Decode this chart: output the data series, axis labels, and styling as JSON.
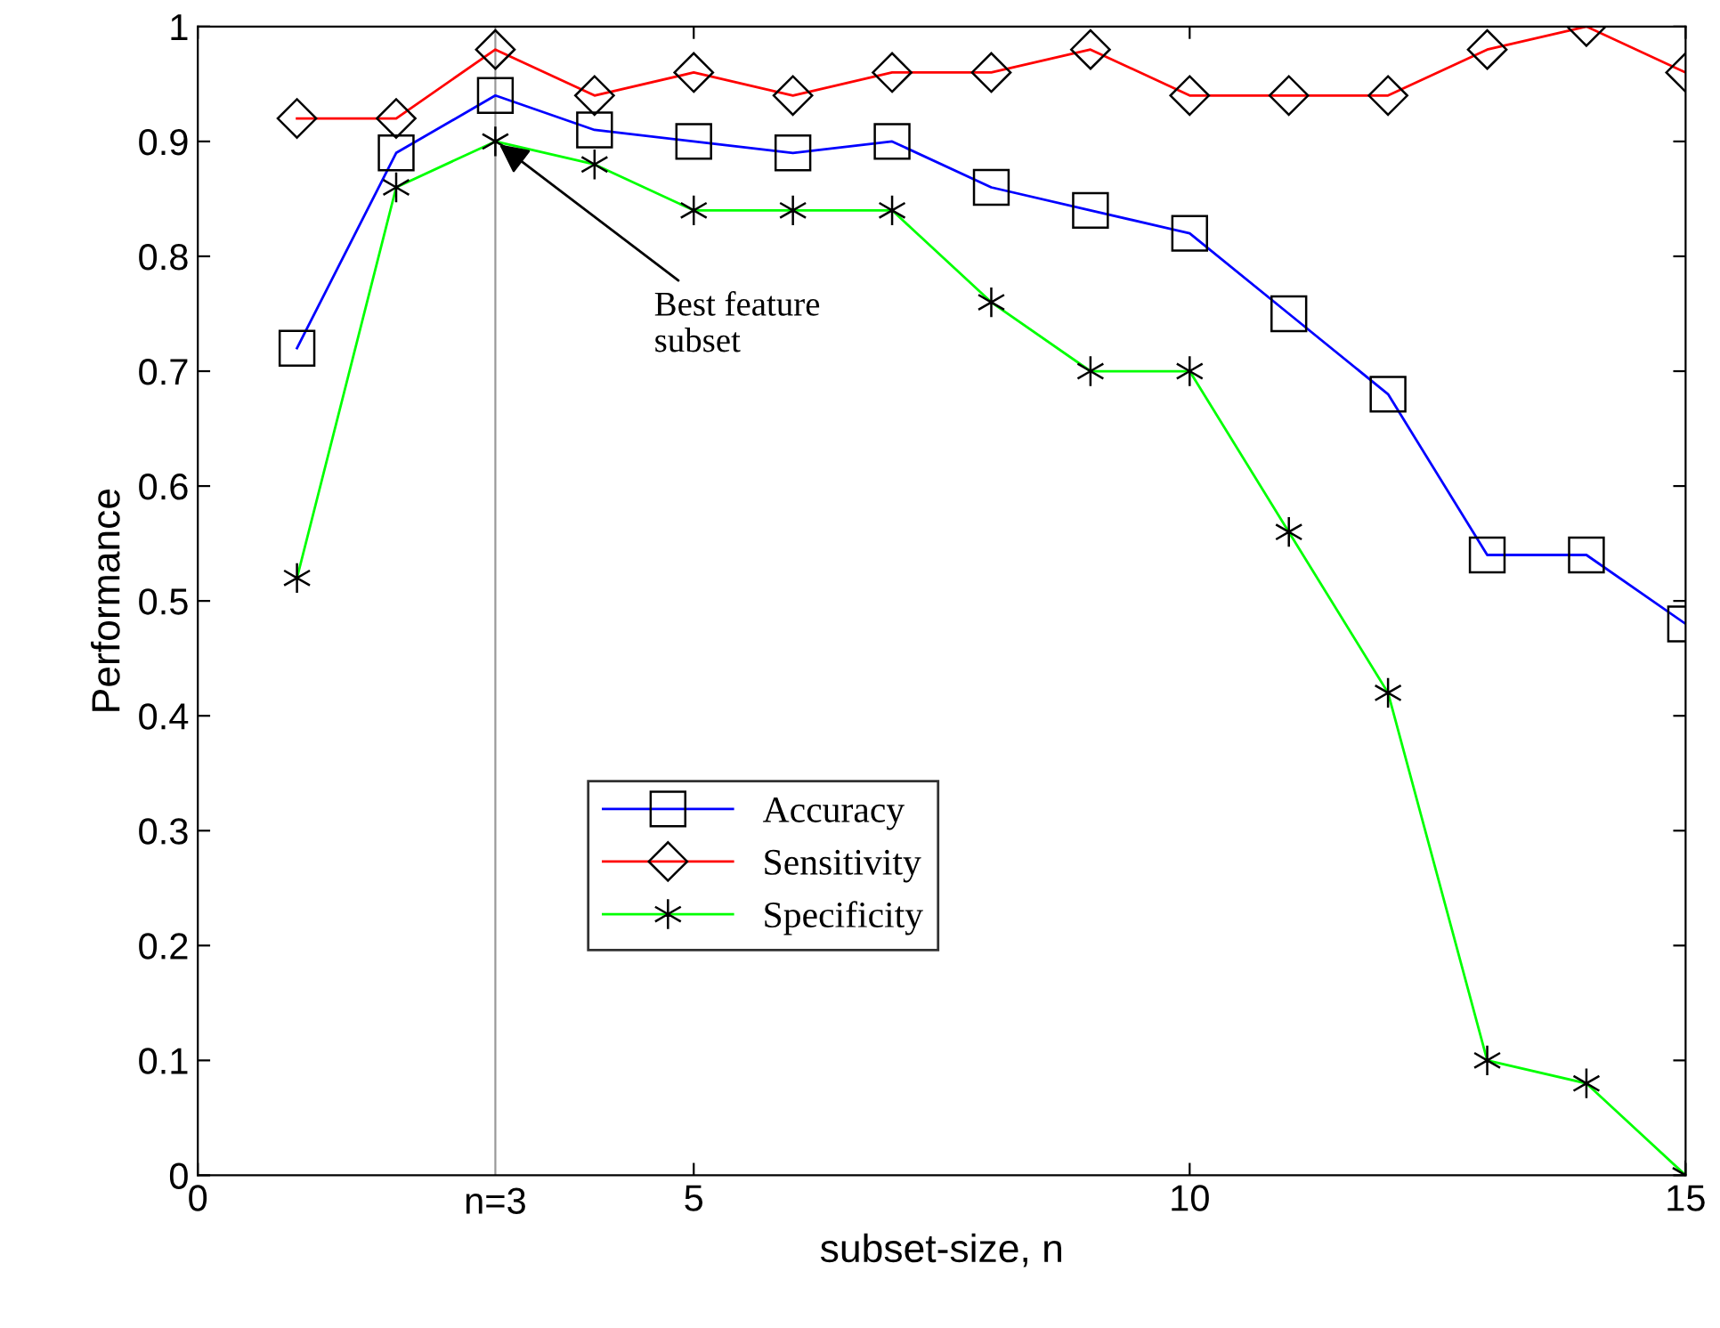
{
  "chart_data": {
    "type": "line",
    "xlabel": "subset-size, n",
    "ylabel": "Performance",
    "x": [
      1,
      2,
      3,
      4,
      5,
      6,
      7,
      8,
      9,
      10,
      11,
      12,
      13,
      14,
      15
    ],
    "series": [
      {
        "name": "Accuracy",
        "color": "#0000ff",
        "marker": "square",
        "values": [
          0.72,
          0.89,
          0.94,
          0.91,
          0.9,
          0.89,
          0.9,
          0.86,
          0.84,
          0.82,
          0.75,
          0.68,
          0.54,
          0.54,
          0.48
        ]
      },
      {
        "name": "Sensitivity",
        "color": "#ff0000",
        "marker": "diamond",
        "values": [
          0.92,
          0.92,
          0.98,
          0.94,
          0.96,
          0.94,
          0.96,
          0.96,
          0.98,
          0.94,
          0.94,
          0.94,
          0.98,
          1.0,
          0.96
        ]
      },
      {
        "name": "Specificity",
        "color": "#00ff00",
        "marker": "cross",
        "values": [
          0.52,
          0.86,
          0.9,
          0.88,
          0.84,
          0.84,
          0.84,
          0.76,
          0.7,
          0.7,
          0.56,
          0.42,
          0.1,
          0.08,
          0.0
        ]
      }
    ],
    "xlim": [
      0,
      15
    ],
    "xticks": [
      0,
      5,
      10,
      15
    ],
    "ylim": [
      0,
      1
    ],
    "yticks": [
      0,
      0.1,
      0.2,
      0.3,
      0.4,
      0.5,
      0.6,
      0.7,
      0.8,
      0.9,
      1
    ],
    "ref_lines": [
      {
        "axis": "x",
        "value": 3,
        "label": "n=3",
        "color": "#999999"
      }
    ],
    "annotations": [
      {
        "text": "Best feature\nsubset",
        "x": 3,
        "y": 0.9
      }
    ],
    "legend": "lower center",
    "grid": false,
    "line_style": "solid"
  }
}
